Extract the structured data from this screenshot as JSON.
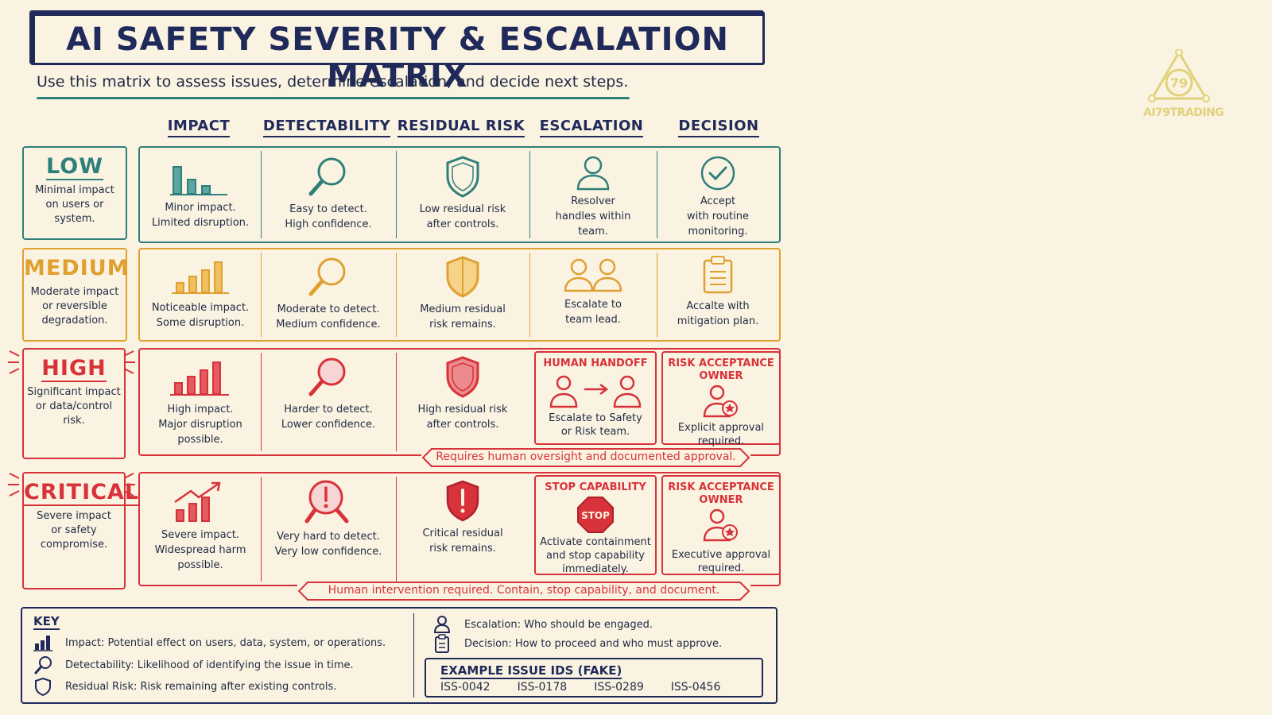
{
  "title": "AI SAFETY SEVERITY & ESCALATION MATRIX",
  "subtitle": "Use this matrix to assess issues, determine escalation, and decide next steps.",
  "columns": [
    "IMPACT",
    "DETECTABILITY",
    "RESIDUAL RISK",
    "ESCALATION",
    "DECISION"
  ],
  "colors": {
    "low": "#2f7f7a",
    "medium": "#e0a030",
    "high": "#d8323a",
    "critical": "#d8323a",
    "navy": "#1f2a5a"
  },
  "rows": [
    {
      "level": "LOW",
      "desc": [
        "Minimal impact",
        "on users or",
        "system."
      ],
      "impact": [
        "Minor impact.",
        "Limited disruption."
      ],
      "detect": [
        "Easy to detect.",
        "High confidence."
      ],
      "residual": [
        "Low residual risk",
        "after controls."
      ],
      "escalation": [
        "Resolver",
        "handles within",
        "team."
      ],
      "decision": [
        "Accept",
        "with routine",
        "monitoring."
      ]
    },
    {
      "level": "MEDIUM",
      "desc": [
        "Moderate impact",
        "or reversible",
        "degradation."
      ],
      "impact": [
        "Noticeable impact.",
        "Some disruption."
      ],
      "detect": [
        "Moderate to detect.",
        "Medium confidence."
      ],
      "residual": [
        "Medium residual",
        "risk remains."
      ],
      "escalation": [
        "Escalate to",
        "team lead."
      ],
      "decision": [
        "Accalte with",
        "mitigation plan."
      ]
    },
    {
      "level": "HIGH",
      "desc": [
        "Significant impact",
        "or data/control",
        "risk."
      ],
      "impact": [
        "High impact.",
        "Major disruption",
        "possible."
      ],
      "detect": [
        "Harder to detect.",
        "Lower confidence."
      ],
      "residual": [
        "High residual risk",
        "after controls."
      ],
      "escalation_title": "HUMAN HANDOFF",
      "escalation": [
        "Escalate to Safety",
        "or Risk team."
      ],
      "decision_title": [
        "RISK ACCEPTANCE",
        "OWNER"
      ],
      "decision": [
        "Explicit approval",
        "required."
      ],
      "banner": "Requires human oversight and documented approval."
    },
    {
      "level": "CRITICAL",
      "desc": [
        "Severe impact",
        "or safety",
        "compromise."
      ],
      "impact": [
        "Severe impact.",
        "Widespread harm",
        "possible."
      ],
      "detect": [
        "Very hard to detect.",
        "Very low confidence."
      ],
      "residual": [
        "Critical residual",
        "risk remains."
      ],
      "escalation_title": "STOP CAPABILITY",
      "stop_sign": "STOP",
      "escalation": [
        "Activate containment",
        "and stop capability",
        "immediately."
      ],
      "decision_title": [
        "RISK ACCEPTANCE",
        "OWNER"
      ],
      "decision": [
        "Executive approval",
        "required."
      ],
      "banner": "Human intervention required.  Contain, stop capability, and document."
    }
  ],
  "key": {
    "title": "KEY",
    "items": [
      {
        "icon": "bar-chart-icon",
        "label": "Impact:",
        "text": "Potential effect on users, data, system, or operations."
      },
      {
        "icon": "magnifier-icon",
        "label": "Detectability:",
        "text": "Likelihood of identifying the issue in time."
      },
      {
        "icon": "shield-icon",
        "label": "Residual Risk:",
        "text": "Risk remaining after existing controls."
      },
      {
        "icon": "person-icon",
        "label": "Escalation:",
        "text": "Who should be engaged."
      },
      {
        "icon": "clipboard-icon",
        "label": "Decision:",
        "text": "How to proceed and who must approve."
      }
    ]
  },
  "examples": {
    "title": "EXAMPLE ISSUE IDS (FAKE)",
    "ids": [
      "ISS-0042",
      "ISS-0178",
      "ISS-0289",
      "ISS-0456"
    ]
  },
  "logo": {
    "mark": "79",
    "text": "AI79TRADING"
  }
}
